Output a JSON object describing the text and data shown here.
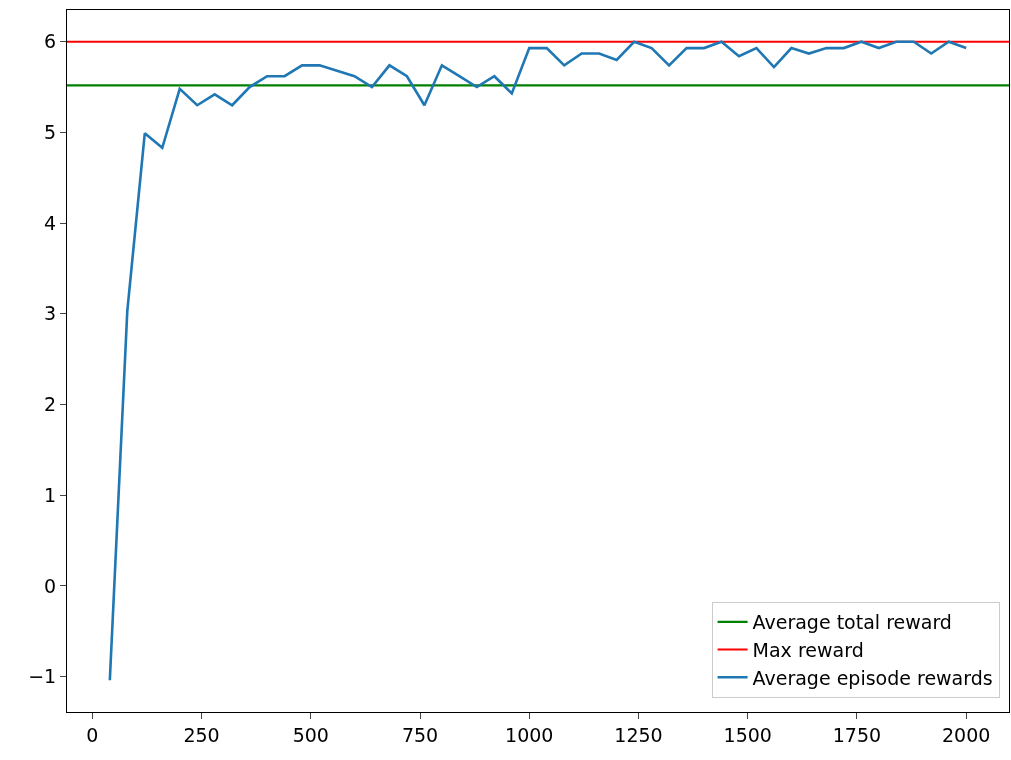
{
  "chart_data": {
    "type": "line",
    "x": [
      40,
      80,
      120,
      160,
      200,
      240,
      280,
      320,
      360,
      400,
      440,
      480,
      520,
      560,
      600,
      640,
      680,
      720,
      760,
      800,
      840,
      880,
      920,
      960,
      1000,
      1040,
      1080,
      1120,
      1160,
      1200,
      1240,
      1280,
      1320,
      1360,
      1400,
      1440,
      1480,
      1520,
      1560,
      1600,
      1640,
      1680,
      1720,
      1760,
      1800,
      1840,
      1880,
      1920,
      1960,
      2000
    ],
    "series": [
      {
        "name": "Average episode rewards",
        "color": "#1f77b4",
        "values": [
          -1.04,
          3.03,
          4.99,
          4.83,
          5.48,
          5.3,
          5.42,
          5.3,
          5.5,
          5.62,
          5.62,
          5.74,
          5.74,
          5.68,
          5.62,
          5.5,
          5.74,
          5.62,
          5.3,
          5.74,
          5.62,
          5.5,
          5.62,
          5.43,
          5.93,
          5.93,
          5.74,
          5.87,
          5.87,
          5.8,
          6.0,
          5.93,
          5.74,
          5.93,
          5.93,
          6.0,
          5.84,
          5.93,
          5.72,
          5.93,
          5.87,
          5.93,
          5.93,
          6.0,
          5.93,
          6.0,
          6.0,
          5.87,
          6.0,
          5.93
        ]
      }
    ],
    "ref_lines": [
      {
        "axis": "y",
        "value": 5.52,
        "label": "Average total reward",
        "color": "#008000"
      },
      {
        "axis": "y",
        "value": 6.0,
        "label": "Max reward",
        "color": "#ff0000"
      }
    ],
    "xlim": [
      -58,
      2098
    ],
    "ylim": [
      -1.39,
      6.35
    ],
    "xticks": [
      0,
      250,
      500,
      750,
      1000,
      1250,
      1500,
      1750,
      2000
    ],
    "yticks": [
      {
        "value": -1,
        "label": "−1"
      },
      0,
      1,
      2,
      3,
      4,
      5,
      6
    ],
    "legend": "bottom right",
    "grid": false,
    "marker": "none",
    "line_style": "solid"
  }
}
